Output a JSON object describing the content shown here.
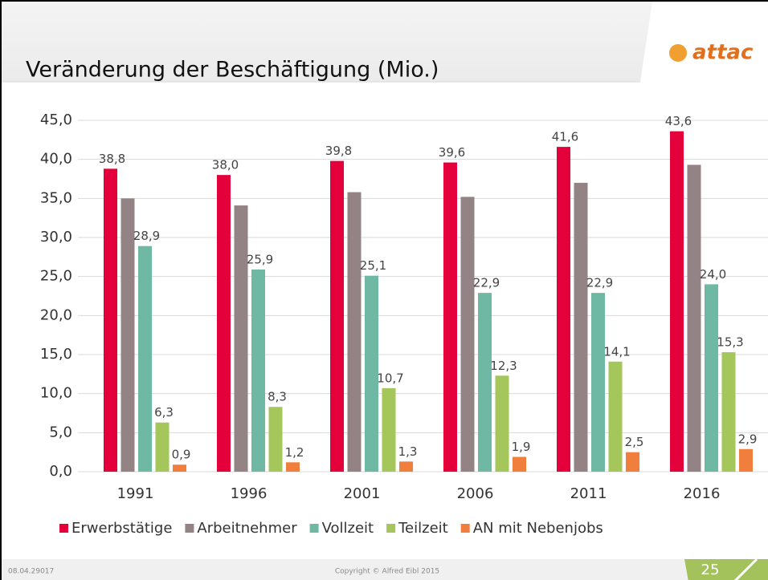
{
  "header": {
    "title": "Veränderung der Beschäftigung (Mio.)",
    "logo": "attac"
  },
  "footer": {
    "date": "08.04.29017",
    "copyright": "Copyright © Alfred Eibl 2015",
    "page": "25"
  },
  "chart_data": {
    "type": "bar",
    "categories": [
      "1991",
      "1996",
      "2001",
      "2006",
      "2011",
      "2016"
    ],
    "series": [
      {
        "name": "Erwerbstätige",
        "color": "#e4003a",
        "values": [
          38.8,
          38.0,
          39.8,
          39.6,
          41.6,
          43.6
        ],
        "value_labels": [
          "38,8",
          "38,0",
          "39,8",
          "39,6",
          "41,6",
          "43,6"
        ]
      },
      {
        "name": "Arbeitnehmer",
        "color": "#948385",
        "values": [
          35.0,
          34.1,
          35.8,
          35.2,
          37.0,
          39.3
        ]
      },
      {
        "name": "Vollzeit",
        "color": "#6fb8a3",
        "values": [
          28.9,
          25.9,
          25.1,
          22.9,
          22.9,
          24.0
        ],
        "value_labels": [
          "28,9",
          "25,9",
          "25,1",
          "22,9",
          "22,9",
          "24,0"
        ]
      },
      {
        "name": "Teilzeit",
        "color": "#a4c65a",
        "values": [
          6.3,
          8.3,
          10.7,
          12.3,
          14.1,
          15.3
        ],
        "value_labels": [
          "6,3",
          "8,3",
          "10,7",
          "12,3",
          "14,1",
          "15,3"
        ]
      },
      {
        "name": "AN mit Nebenjobs",
        "color": "#f07e3c",
        "values": [
          0.9,
          1.2,
          1.3,
          1.9,
          2.5,
          2.9
        ],
        "value_labels": [
          "0,9",
          "1,2",
          "1,3",
          "1,9",
          "2,5",
          "2,9"
        ]
      }
    ],
    "ylim": [
      0,
      45
    ],
    "yticks": [
      {
        "value": 0,
        "label": "0,0"
      },
      {
        "value": 5,
        "label": "5,0"
      },
      {
        "value": 10,
        "label": "10,0"
      },
      {
        "value": 15,
        "label": "15,0"
      },
      {
        "value": 20,
        "label": "20,0"
      },
      {
        "value": 25,
        "label": "25,0"
      },
      {
        "value": 30,
        "label": "30,0"
      },
      {
        "value": 35,
        "label": "35,0"
      },
      {
        "value": 40,
        "label": "40,0"
      },
      {
        "value": 45,
        "label": "45,0"
      }
    ],
    "grid": true,
    "legend": "bottom"
  }
}
